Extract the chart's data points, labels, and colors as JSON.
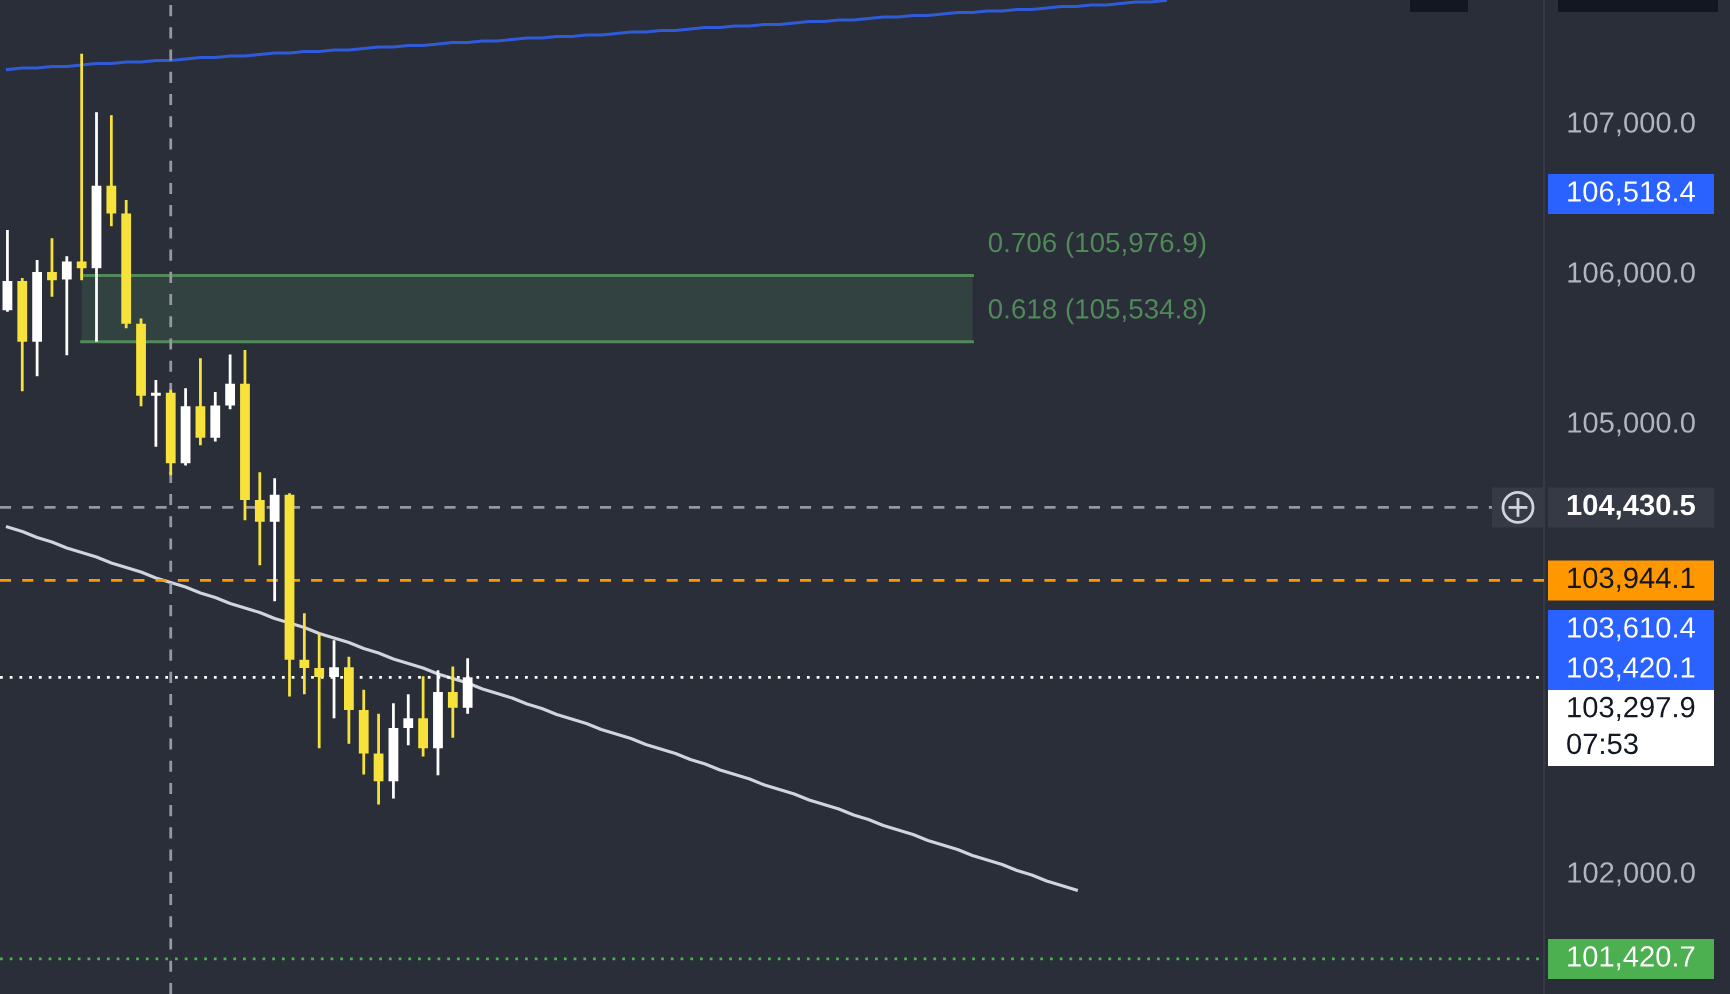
{
  "chart_data": {
    "type": "candlestick",
    "categories": [
      null,
      null,
      null,
      null,
      null,
      null,
      null,
      null,
      null,
      null,
      null,
      null,
      null,
      null,
      null,
      null,
      null,
      null,
      null,
      null,
      null,
      null,
      null,
      null,
      null,
      null,
      null,
      null,
      null,
      null,
      null,
      null,
      null,
      null,
      null,
      null,
      null,
      null,
      null,
      null,
      null,
      null,
      null,
      null,
      null,
      null,
      null,
      null,
      null,
      null,
      null,
      null,
      null,
      null,
      null,
      null,
      null,
      null,
      null,
      null,
      null,
      null,
      null,
      null,
      null,
      null,
      null,
      null,
      null,
      null,
      null,
      null,
      null,
      null,
      null,
      null,
      null,
      null,
      null,
      null,
      null,
      null,
      null,
      null,
      null,
      null,
      null,
      null,
      null,
      null,
      null,
      null,
      null,
      null,
      null,
      null,
      null,
      null,
      null,
      null,
      null,
      null,
      null,
      null
    ],
    "ohlc": [
      [
        105745,
        106280,
        105735,
        105940
      ],
      [
        105940,
        105960,
        105205,
        105535
      ],
      [
        105535,
        106080,
        105305,
        106000
      ],
      [
        106000,
        106225,
        105835,
        105945
      ],
      [
        105950,
        106105,
        105445,
        106070
      ],
      [
        106070,
        107455,
        105945,
        106025
      ],
      [
        106025,
        107065,
        105535,
        106575
      ],
      [
        106575,
        107045,
        106305,
        106390
      ],
      [
        106390,
        106480,
        105625,
        105655
      ],
      [
        105655,
        105690,
        105105,
        105175
      ],
      [
        105175,
        105280,
        104835,
        105195
      ],
      [
        105195,
        105215,
        104645,
        104725
      ],
      [
        104725,
        105225,
        104710,
        105105
      ],
      [
        105105,
        105425,
        104845,
        104895
      ],
      [
        104895,
        105200,
        104870,
        105110
      ],
      [
        105110,
        105450,
        105085,
        105255
      ],
      [
        105255,
        105480,
        104345,
        104480
      ],
      [
        104480,
        104665,
        104045,
        104335
      ],
      [
        104335,
        104625,
        103805,
        104515
      ],
      [
        104515,
        104525,
        103170,
        103415
      ],
      [
        103415,
        103725,
        103185,
        103360
      ],
      [
        103360,
        103590,
        102825,
        103300
      ],
      [
        103300,
        103545,
        103025,
        103365
      ],
      [
        103365,
        103435,
        102855,
        103080
      ],
      [
        103080,
        103215,
        102650,
        102790
      ],
      [
        102790,
        103055,
        102450,
        102605
      ],
      [
        102605,
        103125,
        102490,
        102960
      ],
      [
        102960,
        103185,
        102845,
        103025
      ],
      [
        103025,
        103305,
        102770,
        102825
      ],
      [
        102825,
        103345,
        102645,
        103200
      ],
      [
        103200,
        103370,
        102895,
        103095
      ],
      [
        103095,
        103425,
        103055,
        103297.9
      ],
      null,
      null,
      null,
      null,
      null,
      null,
      null,
      null,
      null,
      null,
      null,
      null,
      null,
      null,
      null,
      null,
      null,
      null,
      null,
      null,
      null,
      null,
      null,
      null,
      null,
      null,
      null,
      null,
      null,
      null,
      null,
      null,
      null,
      null,
      null,
      null,
      null,
      null,
      null,
      null,
      null,
      null,
      null,
      null,
      null,
      null,
      null,
      null,
      null,
      null,
      null,
      null,
      null,
      null,
      null,
      null,
      null,
      null,
      null,
      null,
      null,
      null,
      null,
      null,
      null,
      null,
      null,
      null,
      null,
      null,
      null,
      null
    ],
    "colors": [
      "#ffffff",
      "#f7e23b",
      "#ffffff",
      "#f7e23b",
      "#ffffff",
      "#f7e23b",
      "#ffffff",
      "#f7e23b",
      "#f7e23b",
      "#f7e23b",
      "#ffffff",
      "#f7e23b",
      "#ffffff",
      "#f7e23b",
      "#ffffff",
      "#ffffff",
      "#f7e23b",
      "#f7e23b",
      "#ffffff",
      "#f7e23b",
      "#f7e23b",
      "#f7e23b",
      "#ffffff",
      "#f7e23b",
      "#f7e23b",
      "#f7e23b",
      "#ffffff",
      "#ffffff",
      "#f7e23b",
      "#ffffff",
      "#f7e23b",
      "#ffffff",
      null,
      null,
      null,
      null,
      null,
      null,
      null,
      null,
      null,
      null,
      null,
      null,
      null,
      null,
      null,
      null,
      null,
      null,
      null,
      null,
      null,
      null,
      null,
      null,
      null,
      null,
      null,
      null,
      null,
      null,
      null,
      null,
      null,
      null,
      null,
      null,
      null,
      null,
      null,
      null,
      null,
      null,
      null,
      null,
      null,
      null,
      null,
      null,
      null,
      null,
      null,
      null,
      null,
      null,
      null,
      null,
      null,
      null,
      null,
      null,
      null,
      null,
      null,
      null,
      null,
      null,
      null,
      null,
      null,
      null,
      null,
      null
    ],
    "series": [
      {
        "type": "line",
        "color": "#d1d4dc",
        "values": [
          104300,
          104270,
          104230,
          104200,
          104160,
          104130,
          104100,
          104060,
          104030,
          104000,
          103960,
          103930,
          103900,
          103860,
          103830,
          103790,
          103760,
          103730,
          103690,
          103660,
          103630,
          103590,
          103560,
          103530,
          103490,
          103460,
          103420,
          103390,
          103360,
          103320,
          103290,
          103260,
          103220,
          103190,
          103160,
          103120,
          103090,
          103050,
          103020,
          102990,
          102950,
          102920,
          102890,
          102850,
          102820,
          102790,
          102750,
          102720,
          102680,
          102650,
          102620,
          102580,
          102550,
          102520,
          102480,
          102450,
          102420,
          102380,
          102350,
          102310,
          102280,
          102250,
          102210,
          102180,
          102150,
          102110,
          102080,
          102050,
          102010,
          101980,
          101940,
          101910,
          101880,
          null,
          null,
          null,
          null,
          null,
          null,
          null,
          null,
          null,
          null,
          null,
          null,
          null,
          null,
          null,
          null,
          null,
          null,
          null,
          null,
          null,
          null,
          null,
          null,
          null,
          null,
          null,
          null,
          null,
          null,
          null
        ]
      },
      {
        "type": "line",
        "color": "#2f5bd8",
        "values": [
          107350,
          107360,
          107360,
          107370,
          107370,
          107380,
          107390,
          107390,
          107400,
          107400,
          107410,
          107410,
          107420,
          107430,
          107430,
          107440,
          107440,
          107450,
          107460,
          107460,
          107470,
          107470,
          107480,
          107480,
          107490,
          107500,
          107500,
          107510,
          107510,
          107520,
          107530,
          107530,
          107540,
          107540,
          107550,
          107560,
          107560,
          107570,
          107570,
          107580,
          107580,
          107590,
          107600,
          107600,
          107610,
          107610,
          107620,
          107630,
          107630,
          107640,
          107640,
          107650,
          107650,
          107660,
          107670,
          107670,
          107680,
          107680,
          107690,
          107700,
          107700,
          107710,
          107710,
          107720,
          107730,
          107730,
          107740,
          107740,
          107750,
          107750,
          107760,
          107770,
          107770,
          107780,
          107780,
          107790,
          107800,
          107800,
          107810,
          null,
          null,
          null,
          null,
          null,
          null,
          null,
          null,
          null,
          null,
          null,
          null,
          null,
          null,
          null,
          null,
          null,
          null,
          null,
          null,
          null,
          null,
          null,
          null,
          null
        ]
      },
      {
        "type": "line",
        "name": "0.706 (105,976.9)",
        "color": "#4f8a58",
        "values": [
          null,
          null,
          null,
          null,
          null,
          105976.9,
          105976.9,
          105976.9,
          105976.9,
          105976.9,
          105976.9,
          105976.9,
          105976.9,
          105976.9,
          105976.9,
          105976.9,
          105976.9,
          105976.9,
          105976.9,
          105976.9,
          105976.9,
          105976.9,
          105976.9,
          105976.9,
          105976.9,
          105976.9,
          105976.9,
          105976.9,
          105976.9,
          105976.9,
          105976.9,
          105976.9,
          105976.9,
          105976.9,
          105976.9,
          105976.9,
          105976.9,
          105976.9,
          105976.9,
          105976.9,
          105976.9,
          105976.9,
          105976.9,
          105976.9,
          105976.9,
          105976.9,
          105976.9,
          105976.9,
          105976.9,
          105976.9,
          105976.9,
          105976.9,
          105976.9,
          105976.9,
          105976.9,
          105976.9,
          105976.9,
          105976.9,
          105976.9,
          105976.9,
          105976.9,
          105976.9,
          105976.9,
          105976.9,
          105976.9,
          105976.9,
          null,
          null,
          null,
          null,
          null,
          null,
          null,
          null,
          null,
          null,
          null,
          null,
          null,
          null,
          null,
          null,
          null,
          null,
          null,
          null,
          null,
          null,
          null,
          null,
          null,
          null,
          null,
          null,
          null,
          null,
          null,
          null,
          null,
          null,
          null,
          null,
          null,
          null
        ],
        "lower": [
          null,
          null,
          null,
          null,
          null,
          105534.8,
          105534.8,
          105534.8,
          105534.8,
          105534.8,
          105534.8,
          105534.8,
          105534.8,
          105534.8,
          105534.8,
          105534.8,
          105534.8,
          105534.8,
          105534.8,
          105534.8,
          105534.8,
          105534.8,
          105534.8,
          105534.8,
          105534.8,
          105534.8,
          105534.8,
          105534.8,
          105534.8,
          105534.8,
          105534.8,
          105534.8,
          105534.8,
          105534.8,
          105534.8,
          105534.8,
          105534.8,
          105534.8,
          105534.8,
          105534.8,
          105534.8,
          105534.8,
          105534.8,
          105534.8,
          105534.8,
          105534.8,
          105534.8,
          105534.8,
          105534.8,
          105534.8,
          105534.8,
          105534.8,
          105534.8,
          105534.8,
          105534.8,
          105534.8,
          105534.8,
          105534.8,
          105534.8,
          105534.8,
          105534.8,
          105534.8,
          105534.8,
          105534.8,
          105534.8,
          105534.8,
          null,
          null,
          null,
          null,
          null,
          null,
          null,
          null,
          null,
          null,
          null,
          null,
          null,
          null,
          null,
          null,
          null,
          null,
          null,
          null,
          null,
          null,
          null,
          null,
          null,
          null,
          null,
          null,
          null,
          null,
          null,
          null,
          null,
          null,
          null,
          null,
          null,
          null
        ],
        "upper": [
          null,
          null,
          null,
          null,
          null,
          105976.9,
          105976.9,
          105976.9,
          105976.9,
          105976.9,
          105976.9,
          105976.9,
          105976.9,
          105976.9,
          105976.9,
          105976.9,
          105976.9,
          105976.9,
          105976.9,
          105976.9,
          105976.9,
          105976.9,
          105976.9,
          105976.9,
          105976.9,
          105976.9,
          105976.9,
          105976.9,
          105976.9,
          105976.9,
          105976.9,
          105976.9,
          105976.9,
          105976.9,
          105976.9,
          105976.9,
          105976.9,
          105976.9,
          105976.9,
          105976.9,
          105976.9,
          105976.9,
          105976.9,
          105976.9,
          105976.9,
          105976.9,
          105976.9,
          105976.9,
          105976.9,
          105976.9,
          105976.9,
          105976.9,
          105976.9,
          105976.9,
          105976.9,
          105976.9,
          105976.9,
          105976.9,
          105976.9,
          105976.9,
          105976.9,
          105976.9,
          105976.9,
          105976.9,
          105976.9,
          105976.9,
          null,
          null,
          null,
          null,
          null,
          null,
          null,
          null,
          null,
          null,
          null,
          null,
          null,
          null,
          null,
          null,
          null,
          null,
          null,
          null,
          null,
          null,
          null,
          null,
          null,
          null,
          null,
          null,
          null,
          null,
          null,
          null,
          null,
          null,
          null,
          null,
          null,
          null
        ]
      },
      {
        "type": "line",
        "name": "0.618 (105,534.8)",
        "color": "#4f8a58",
        "values": [
          null,
          null,
          null,
          null,
          null,
          105534.8,
          105534.8,
          105534.8,
          105534.8,
          105534.8,
          105534.8,
          105534.8,
          105534.8,
          105534.8,
          105534.8,
          105534.8,
          105534.8,
          105534.8,
          105534.8,
          105534.8,
          105534.8,
          105534.8,
          105534.8,
          105534.8,
          105534.8,
          105534.8,
          105534.8,
          105534.8,
          105534.8,
          105534.8,
          105534.8,
          105534.8,
          105534.8,
          105534.8,
          105534.8,
          105534.8,
          105534.8,
          105534.8,
          105534.8,
          105534.8,
          105534.8,
          105534.8,
          105534.8,
          105534.8,
          105534.8,
          105534.8,
          105534.8,
          105534.8,
          105534.8,
          105534.8,
          105534.8,
          105534.8,
          105534.8,
          105534.8,
          105534.8,
          105534.8,
          105534.8,
          105534.8,
          105534.8,
          105534.8,
          105534.8,
          105534.8,
          105534.8,
          105534.8,
          105534.8,
          105534.8,
          null,
          null,
          null,
          null,
          null,
          null,
          null,
          null,
          null,
          null,
          null,
          null,
          null,
          null,
          null,
          null,
          null,
          null,
          null,
          null,
          null,
          null,
          null,
          null,
          null,
          null,
          null,
          null,
          null,
          null,
          null,
          null,
          null,
          null,
          null,
          null,
          null,
          null
        ]
      }
    ],
    "ylim": [
      101187,
      107813
    ],
    "yticks": [
      {
        "value": 102000,
        "label": "102,000.0"
      },
      {
        "value": 105000,
        "label": "105,000.0"
      },
      {
        "value": 106000,
        "label": "106,000.0"
      },
      {
        "value": 107000,
        "label": "107,000.0"
      }
    ],
    "tick_labels": "y",
    "ref_lines": [
      {
        "axis": "y",
        "value": 104430.5,
        "label": "104,430.5",
        "color": "#9598a1",
        "line_style": "dashed"
      },
      {
        "axis": "y",
        "value": 103944.1,
        "label": "103,944.1",
        "color": "#ff9800",
        "line_style": "dashed"
      },
      {
        "axis": "y",
        "value": 103297.9,
        "label": "103,297.9\n07:53",
        "color": "#ffffff",
        "line_style": "dotted"
      },
      {
        "axis": "y",
        "value": 101420.7,
        "label": "101,420.7",
        "color": "#4caf50",
        "line_style": "dotted"
      }
    ],
    "annotations": [
      "106,518.4",
      "103,610.4",
      "103,420.1"
    ]
  }
}
